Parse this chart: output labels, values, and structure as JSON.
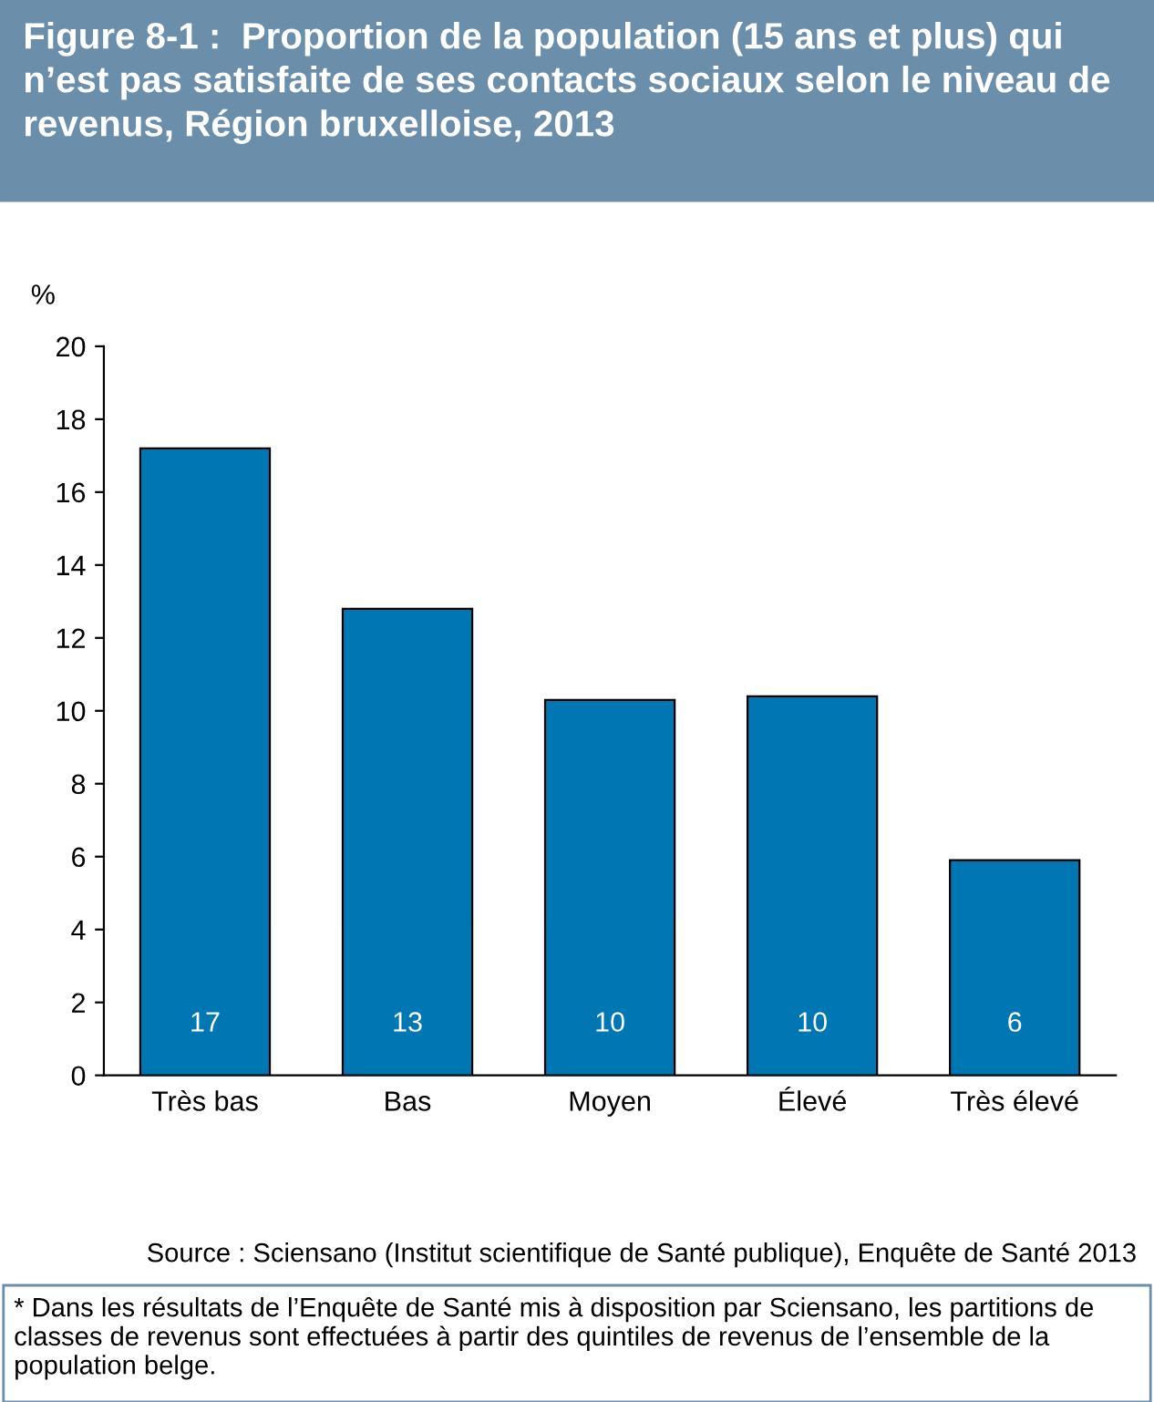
{
  "chart_data": {
    "type": "bar",
    "title": "Figure 8-1 :  Proportion de la population (15 ans et plus) qui n’est pas satisfaite de ses contacts sociaux selon le niveau de revenus, Région bruxelloise, 2013",
    "ylabel": "%",
    "categories": [
      "Très bas",
      "Bas",
      "Moyen",
      "Élevé",
      "Très élevé"
    ],
    "values": [
      17.2,
      12.8,
      10.3,
      10.4,
      5.9
    ],
    "value_labels": [
      "17",
      "13",
      "10",
      "10",
      "6"
    ],
    "color": "#0077b3",
    "ylim": [
      0,
      20
    ],
    "yticks": [
      0,
      2,
      4,
      6,
      8,
      10,
      12,
      14,
      16,
      18,
      20
    ],
    "annotations": [
      "Source : Sciensano (Institut scientifique de Santé publique), Enquête de Santé 2013",
      "* Dans les résultats de l’Enquête de Santé mis à disposition par Sciensano, les partitions de classes de revenus sont effectuées à partir des quintiles de revenus de l’ensemble de la population belge."
    ]
  }
}
